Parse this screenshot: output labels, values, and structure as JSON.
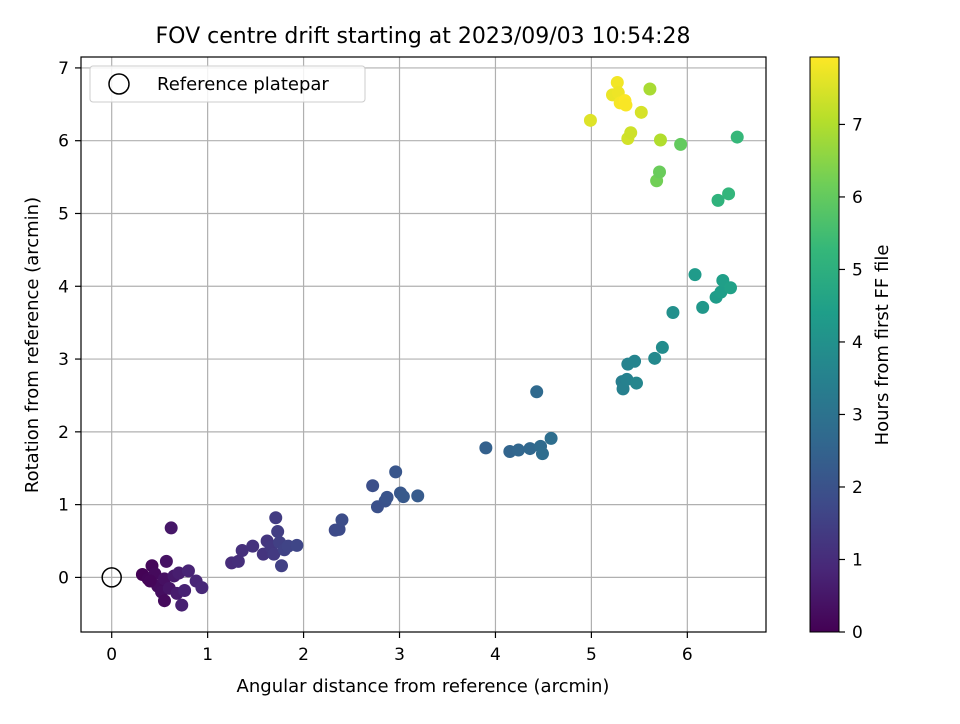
{
  "chart_data": {
    "type": "scatter",
    "title": "FOV centre drift starting at 2023/09/03 10:54:28",
    "xlabel": "Angular distance from reference (arcmin)",
    "ylabel": "Rotation from reference (arcmin)",
    "xlim": [
      -0.32,
      6.82
    ],
    "ylim": [
      -0.75,
      7.15
    ],
    "xticks": [
      0,
      1,
      2,
      3,
      4,
      5,
      6
    ],
    "yticks": [
      0,
      1,
      2,
      3,
      4,
      5,
      6,
      7
    ],
    "grid": true,
    "legend": {
      "position": "top-left",
      "entries": [
        "Reference platepar"
      ]
    },
    "reference_point": {
      "x": 0,
      "y": 0
    },
    "colorbar": {
      "label": "Hours from first FF file",
      "colormap": "viridis",
      "range": [
        0,
        7.93
      ],
      "ticks": [
        0,
        1,
        2,
        3,
        4,
        5,
        6,
        7
      ]
    },
    "points": [
      {
        "x": 0.32,
        "y": 0.04,
        "c": 0.05
      },
      {
        "x": 0.38,
        "y": -0.02,
        "c": 0.1
      },
      {
        "x": 0.42,
        "y": 0.16,
        "c": 0.15
      },
      {
        "x": 0.45,
        "y": 0.05,
        "c": 0.2
      },
      {
        "x": 0.48,
        "y": -0.12,
        "c": 0.25
      },
      {
        "x": 0.52,
        "y": -0.2,
        "c": 0.3
      },
      {
        "x": 0.55,
        "y": -0.02,
        "c": 0.35
      },
      {
        "x": 0.57,
        "y": 0.22,
        "c": 0.4
      },
      {
        "x": 0.6,
        "y": -0.15,
        "c": 0.45
      },
      {
        "x": 0.62,
        "y": 0.68,
        "c": 0.5
      },
      {
        "x": 0.65,
        "y": 0.02,
        "c": 0.55
      },
      {
        "x": 0.68,
        "y": -0.22,
        "c": 0.6
      },
      {
        "x": 0.7,
        "y": 0.06,
        "c": 0.65
      },
      {
        "x": 0.73,
        "y": -0.38,
        "c": 0.7
      },
      {
        "x": 0.76,
        "y": -0.18,
        "c": 0.75
      },
      {
        "x": 0.8,
        "y": 0.09,
        "c": 0.8
      },
      {
        "x": 0.88,
        "y": -0.05,
        "c": 0.85
      },
      {
        "x": 0.94,
        "y": -0.14,
        "c": 0.9
      },
      {
        "x": 0.55,
        "y": -0.32,
        "c": 0.2
      },
      {
        "x": 0.4,
        "y": -0.05,
        "c": 0.12
      },
      {
        "x": 1.25,
        "y": 0.2,
        "c": 1.0
      },
      {
        "x": 1.32,
        "y": 0.22,
        "c": 1.05
      },
      {
        "x": 1.36,
        "y": 0.37,
        "c": 1.1
      },
      {
        "x": 1.47,
        "y": 0.43,
        "c": 1.15
      },
      {
        "x": 1.58,
        "y": 0.32,
        "c": 1.2
      },
      {
        "x": 1.62,
        "y": 0.5,
        "c": 1.25
      },
      {
        "x": 1.66,
        "y": 0.42,
        "c": 1.3
      },
      {
        "x": 1.69,
        "y": 0.32,
        "c": 1.35
      },
      {
        "x": 1.71,
        "y": 0.82,
        "c": 1.4
      },
      {
        "x": 1.73,
        "y": 0.63,
        "c": 1.45
      },
      {
        "x": 1.75,
        "y": 0.48,
        "c": 1.5
      },
      {
        "x": 1.77,
        "y": 0.16,
        "c": 1.5
      },
      {
        "x": 1.8,
        "y": 0.38,
        "c": 1.55
      },
      {
        "x": 1.84,
        "y": 0.43,
        "c": 1.6
      },
      {
        "x": 1.93,
        "y": 0.44,
        "c": 1.65
      },
      {
        "x": 2.33,
        "y": 0.65,
        "c": 1.75
      },
      {
        "x": 2.37,
        "y": 0.66,
        "c": 1.8
      },
      {
        "x": 2.4,
        "y": 0.79,
        "c": 1.85
      },
      {
        "x": 2.72,
        "y": 1.26,
        "c": 1.9
      },
      {
        "x": 2.77,
        "y": 0.97,
        "c": 1.95
      },
      {
        "x": 2.85,
        "y": 1.05,
        "c": 2.0
      },
      {
        "x": 2.87,
        "y": 1.1,
        "c": 2.05
      },
      {
        "x": 2.96,
        "y": 1.45,
        "c": 2.1
      },
      {
        "x": 3.01,
        "y": 1.16,
        "c": 2.15
      },
      {
        "x": 3.04,
        "y": 1.11,
        "c": 2.2
      },
      {
        "x": 3.19,
        "y": 1.12,
        "c": 2.25
      },
      {
        "x": 3.9,
        "y": 1.78,
        "c": 2.45
      },
      {
        "x": 4.15,
        "y": 1.73,
        "c": 2.55
      },
      {
        "x": 4.24,
        "y": 1.75,
        "c": 2.6
      },
      {
        "x": 4.36,
        "y": 1.77,
        "c": 2.65
      },
      {
        "x": 4.43,
        "y": 2.55,
        "c": 2.7
      },
      {
        "x": 4.47,
        "y": 1.8,
        "c": 2.75
      },
      {
        "x": 4.49,
        "y": 1.7,
        "c": 2.8
      },
      {
        "x": 4.58,
        "y": 1.91,
        "c": 2.85
      },
      {
        "x": 5.32,
        "y": 2.69,
        "c": 3.4
      },
      {
        "x": 5.33,
        "y": 2.59,
        "c": 3.45
      },
      {
        "x": 5.37,
        "y": 2.72,
        "c": 3.5
      },
      {
        "x": 5.38,
        "y": 2.93,
        "c": 3.55
      },
      {
        "x": 5.45,
        "y": 2.97,
        "c": 3.6
      },
      {
        "x": 5.47,
        "y": 2.67,
        "c": 3.65
      },
      {
        "x": 5.66,
        "y": 3.01,
        "c": 3.75
      },
      {
        "x": 5.74,
        "y": 3.16,
        "c": 3.85
      },
      {
        "x": 5.85,
        "y": 3.64,
        "c": 3.95
      },
      {
        "x": 6.08,
        "y": 4.16,
        "c": 4.3
      },
      {
        "x": 6.16,
        "y": 3.71,
        "c": 4.2
      },
      {
        "x": 6.3,
        "y": 3.85,
        "c": 4.35
      },
      {
        "x": 6.35,
        "y": 3.92,
        "c": 4.4
      },
      {
        "x": 6.37,
        "y": 4.08,
        "c": 4.45
      },
      {
        "x": 6.45,
        "y": 3.98,
        "c": 4.5
      },
      {
        "x": 6.32,
        "y": 5.18,
        "c": 5.1
      },
      {
        "x": 6.43,
        "y": 5.27,
        "c": 5.2
      },
      {
        "x": 6.52,
        "y": 6.05,
        "c": 5.3
      },
      {
        "x": 5.68,
        "y": 5.45,
        "c": 6.2
      },
      {
        "x": 5.71,
        "y": 5.57,
        "c": 6.1
      },
      {
        "x": 5.93,
        "y": 5.95,
        "c": 6.0
      },
      {
        "x": 5.61,
        "y": 6.71,
        "c": 6.9
      },
      {
        "x": 5.72,
        "y": 6.01,
        "c": 7.0
      },
      {
        "x": 5.38,
        "y": 6.03,
        "c": 7.4
      },
      {
        "x": 5.41,
        "y": 6.11,
        "c": 7.35
      },
      {
        "x": 5.52,
        "y": 6.39,
        "c": 7.45
      },
      {
        "x": 4.99,
        "y": 6.28,
        "c": 7.55
      },
      {
        "x": 5.22,
        "y": 6.63,
        "c": 7.7
      },
      {
        "x": 5.27,
        "y": 6.8,
        "c": 7.8
      },
      {
        "x": 5.28,
        "y": 6.66,
        "c": 7.75
      },
      {
        "x": 5.3,
        "y": 6.52,
        "c": 7.85
      },
      {
        "x": 5.35,
        "y": 6.55,
        "c": 7.9
      },
      {
        "x": 5.36,
        "y": 6.49,
        "c": 7.88
      }
    ]
  }
}
